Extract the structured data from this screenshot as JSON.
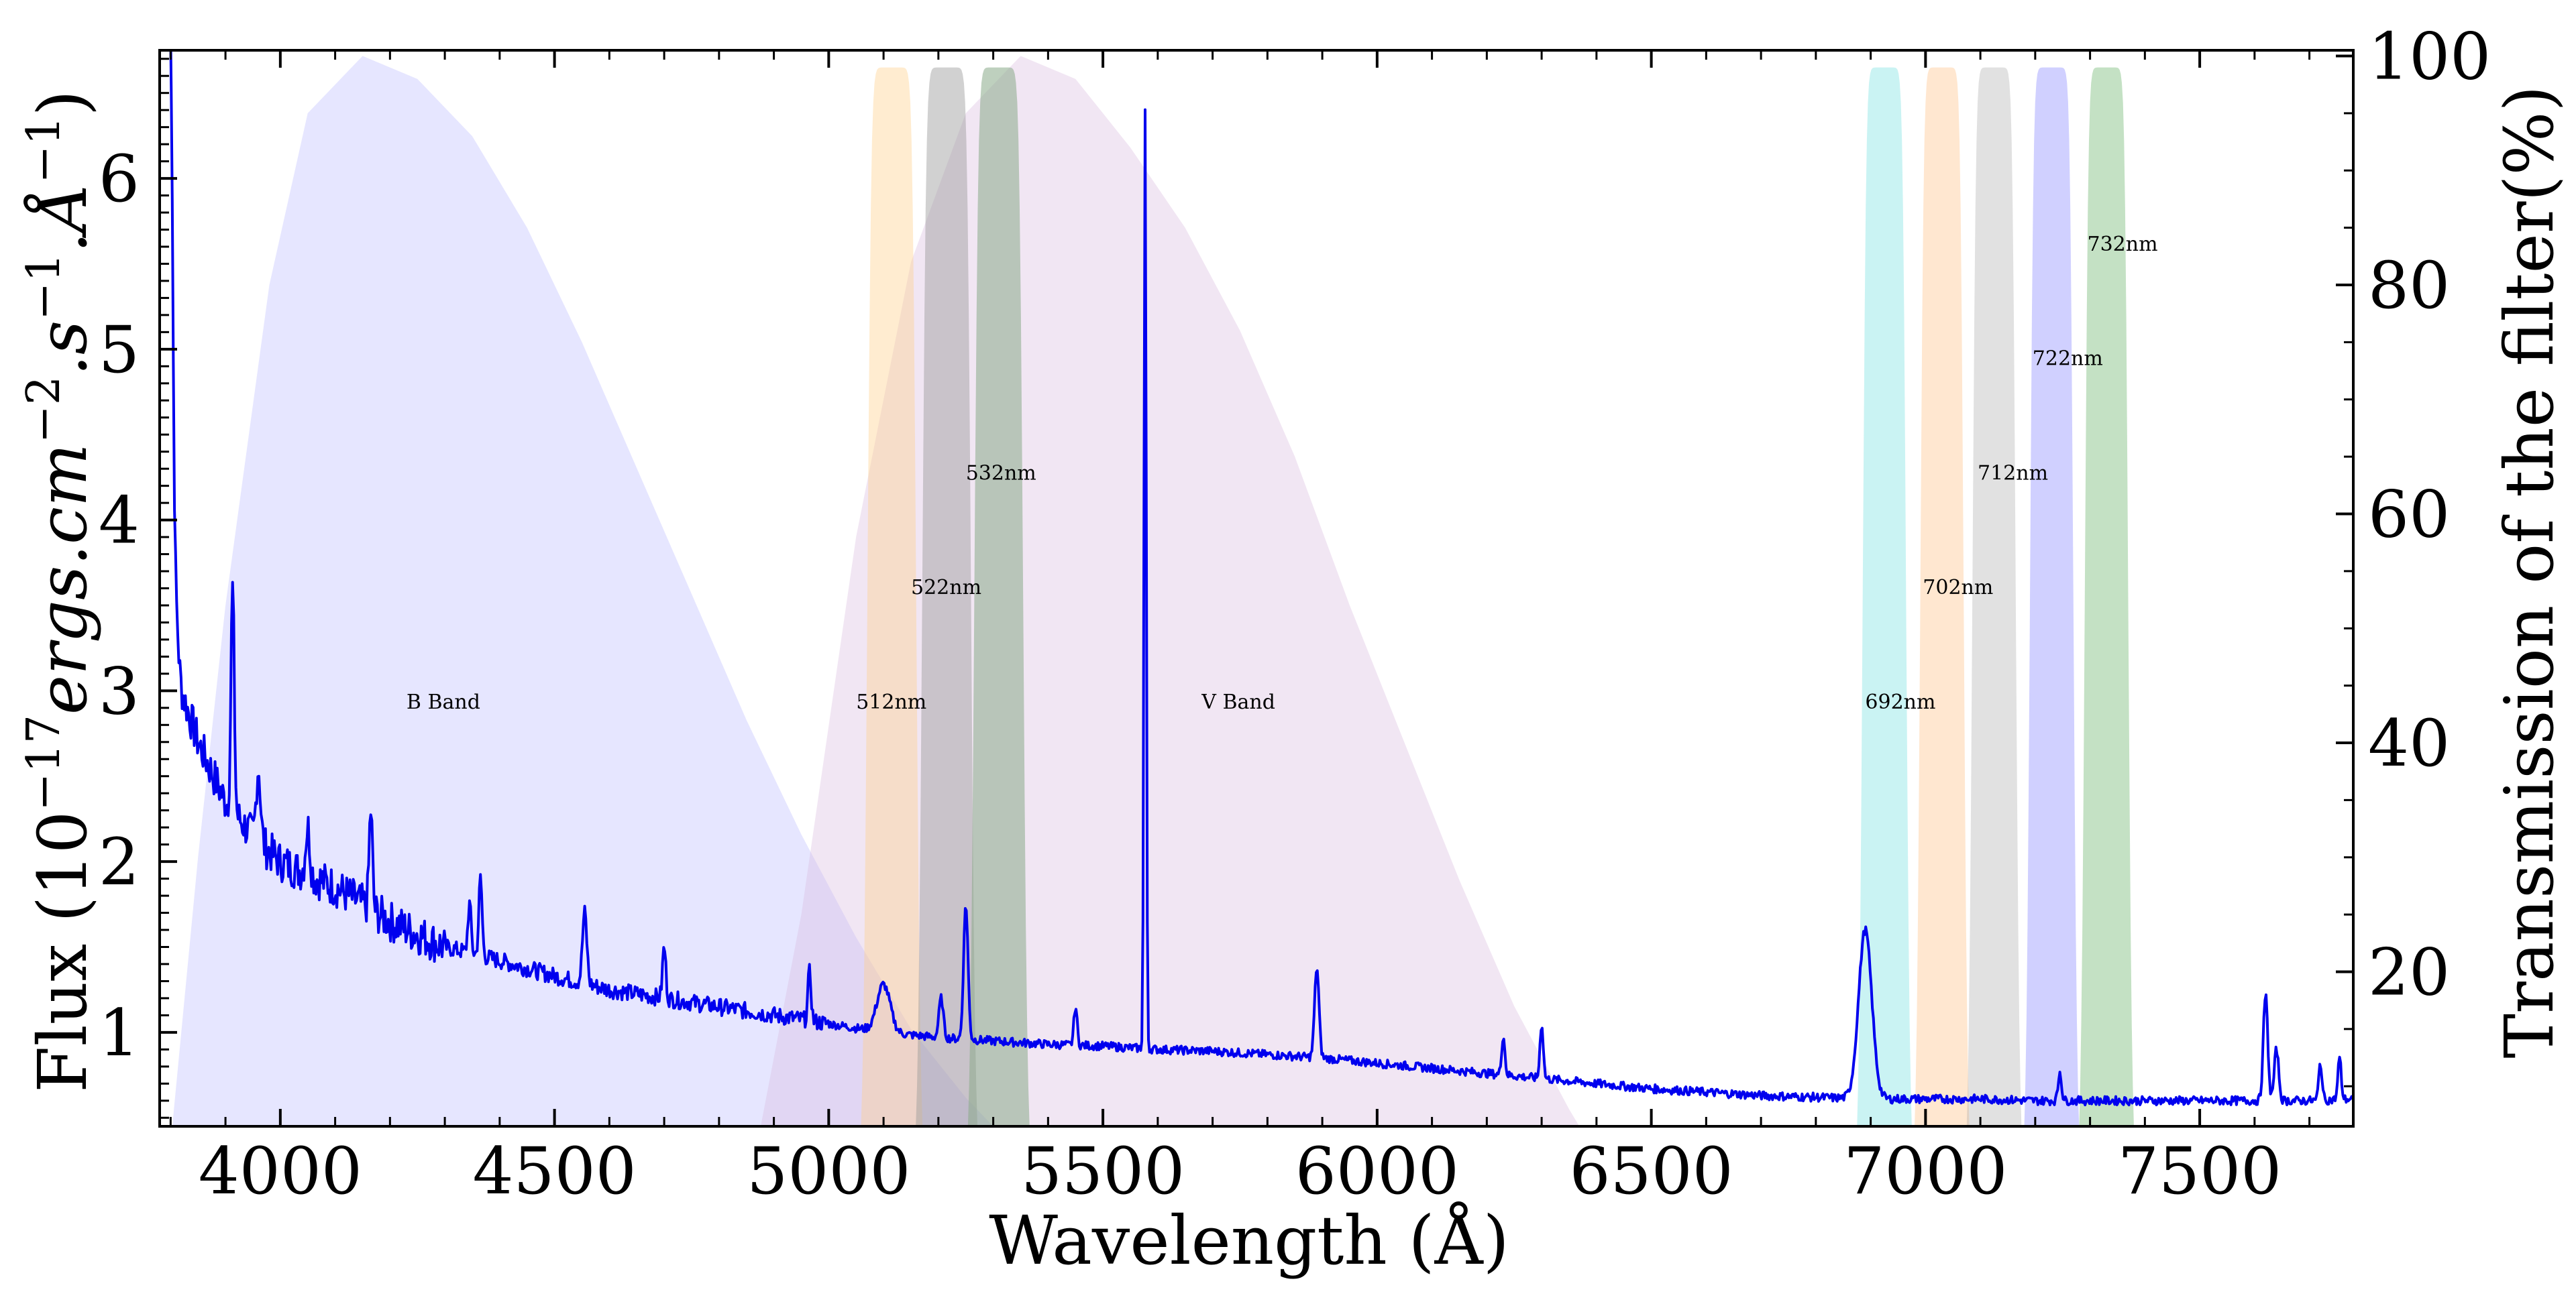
{
  "chart_data": {
    "type": "line",
    "title": "",
    "xlabel": "Wavelength (Å)",
    "ylabel_left_prefix": "Flux (10",
    "ylabel_left_exp": "−17",
    "ylabel_left_units": "ergs.cm",
    "ylabel_left_exp2": "−2",
    "ylabel_left_s": ".s",
    "ylabel_left_exp3": "−1",
    "ylabel_left_A": ".Å",
    "ylabel_left_exp4": "−1",
    "ylabel_left_close": ")",
    "ylabel_right": "Transmission of the filter(%)",
    "xlim": [
      3780,
      7780
    ],
    "ylim_left": [
      0.45,
      6.75
    ],
    "ylim_right": [
      6.5,
      100.5
    ],
    "xticks": [
      4000,
      4500,
      5000,
      5500,
      6000,
      6500,
      7000,
      7500
    ],
    "xtick_labels": [
      "4000",
      "4500",
      "5000",
      "5500",
      "6000",
      "6500",
      "7000",
      "7500"
    ],
    "yticks_left": [
      1,
      2,
      3,
      4,
      5,
      6
    ],
    "ytick_labels_left": [
      "1",
      "2",
      "3",
      "4",
      "5",
      "6"
    ],
    "yticks_right": [
      20,
      40,
      60,
      80,
      100
    ],
    "ytick_labels_right": [
      "20",
      "40",
      "60",
      "80",
      "100"
    ],
    "spectrum": {
      "name": "Flux",
      "color": "#0000ee",
      "continuum": {
        "x": [
          3795,
          3800,
          3820,
          3850,
          3900,
          3950,
          4000,
          4100,
          4200,
          4300,
          4400,
          4500,
          4600,
          4700,
          4800,
          4900,
          5000,
          5100,
          5200,
          5300,
          5400,
          5500,
          5600,
          5700,
          5800,
          5900,
          6000,
          6100,
          6200,
          6300,
          6400,
          6500,
          6600,
          6700,
          6800,
          6900,
          7000,
          7100,
          7200,
          7300,
          7400,
          7500,
          7600,
          7700,
          7780
        ],
        "y": [
          6.4,
          3.3,
          3.0,
          2.7,
          2.35,
          2.15,
          2.0,
          1.85,
          1.65,
          1.5,
          1.42,
          1.33,
          1.25,
          1.2,
          1.15,
          1.1,
          1.05,
          1.0,
          0.97,
          0.95,
          0.93,
          0.92,
          0.9,
          0.89,
          0.87,
          0.85,
          0.82,
          0.79,
          0.76,
          0.73,
          0.7,
          0.67,
          0.65,
          0.63,
          0.62,
          0.61,
          0.61,
          0.61,
          0.6,
          0.6,
          0.6,
          0.6,
          0.6,
          0.6,
          0.61
        ]
      },
      "emission_lines": [
        {
          "x": 3800,
          "peak": 6.7,
          "width": 4
        },
        {
          "x": 3810,
          "peak": 3.45,
          "width": 4
        },
        {
          "x": 3913,
          "peak": 3.6,
          "width": 3
        },
        {
          "x": 3960,
          "peak": 2.55,
          "width": 4
        },
        {
          "x": 4050,
          "peak": 2.2,
          "width": 4
        },
        {
          "x": 4165,
          "peak": 2.3,
          "width": 3
        },
        {
          "x": 4345,
          "peak": 1.75,
          "width": 3
        },
        {
          "x": 4365,
          "peak": 1.9,
          "width": 3
        },
        {
          "x": 4555,
          "peak": 1.7,
          "width": 4
        },
        {
          "x": 4700,
          "peak": 1.5,
          "width": 3
        },
        {
          "x": 4965,
          "peak": 1.35,
          "width": 3
        },
        {
          "x": 5100,
          "peak": 1.28,
          "width": 12
        },
        {
          "x": 5205,
          "peak": 1.2,
          "width": 4
        },
        {
          "x": 5250,
          "peak": 1.75,
          "width": 4
        },
        {
          "x": 5450,
          "peak": 1.15,
          "width": 3
        },
        {
          "x": 5577,
          "peak": 6.4,
          "width": 2
        },
        {
          "x": 5890,
          "peak": 1.38,
          "width": 4
        },
        {
          "x": 6230,
          "peak": 0.98,
          "width": 3
        },
        {
          "x": 6300,
          "peak": 1.05,
          "width": 3
        },
        {
          "x": 6890,
          "peak": 1.6,
          "width": 12
        },
        {
          "x": 7245,
          "peak": 0.77,
          "width": 3
        },
        {
          "x": 7620,
          "peak": 1.22,
          "width": 4
        },
        {
          "x": 7640,
          "peak": 0.9,
          "width": 4
        },
        {
          "x": 7720,
          "peak": 0.82,
          "width": 3
        },
        {
          "x": 7755,
          "peak": 0.85,
          "width": 3
        }
      ]
    },
    "filters": [
      {
        "name": "B Band",
        "label": "B Band",
        "color": "#8080ff",
        "opacity": 0.2,
        "x": [
          3790,
          3850,
          3900,
          3980,
          4050,
          4150,
          4250,
          4350,
          4450,
          4550,
          4650,
          4750,
          4850,
          4950,
          5050,
          5150,
          5250,
          5350,
          5460
        ],
        "t": [
          0,
          30,
          52,
          80,
          95,
          100,
          98,
          93,
          85,
          75,
          64,
          53,
          42,
          32,
          23,
          15,
          9,
          4,
          0
        ],
        "label_x": 4230,
        "label_t": 43
      },
      {
        "name": "V Band",
        "label": "V Band",
        "color": "#d8b8dd",
        "opacity": 0.35,
        "x": [
          4850,
          4950,
          5050,
          5150,
          5250,
          5350,
          5450,
          5550,
          5650,
          5750,
          5850,
          5950,
          6050,
          6150,
          6250,
          6350,
          6450
        ],
        "t": [
          0,
          25,
          58,
          82,
          95,
          100,
          98,
          92,
          85,
          76,
          65,
          52,
          40,
          28,
          17,
          8,
          0
        ],
        "label_x": 5680,
        "label_t": 43
      },
      {
        "name": "512nm",
        "label": "512nm",
        "color": "#ffd08a",
        "opacity": 0.4,
        "center": 5115,
        "fwhm": 90,
        "label_x": 5050,
        "label_t": 43
      },
      {
        "name": "522nm",
        "label": "522nm",
        "color": "#999999",
        "opacity": 0.45,
        "center": 5215,
        "fwhm": 90,
        "label_x": 5150,
        "label_t": 53
      },
      {
        "name": "532nm",
        "label": "532nm",
        "color": "#88aa88",
        "opacity": 0.55,
        "center": 5310,
        "fwhm": 90,
        "label_x": 5250,
        "label_t": 63
      },
      {
        "name": "692nm",
        "label": "692nm",
        "color": "#66dddd",
        "opacity": 0.35,
        "center": 6925,
        "fwhm": 80,
        "label_x": 6890,
        "label_t": 43
      },
      {
        "name": "702nm",
        "label": "702nm",
        "color": "#ffbb77",
        "opacity": 0.35,
        "center": 7030,
        "fwhm": 80,
        "label_x": 6995,
        "label_t": 53
      },
      {
        "name": "712nm",
        "label": "712nm",
        "color": "#aaaaaa",
        "opacity": 0.35,
        "center": 7125,
        "fwhm": 80,
        "label_x": 7095,
        "label_t": 63
      },
      {
        "name": "722nm",
        "label": "722nm",
        "color": "#7777ff",
        "opacity": 0.35,
        "center": 7230,
        "fwhm": 80,
        "label_x": 7195,
        "label_t": 73
      },
      {
        "name": "732nm",
        "label": "732nm",
        "color": "#55aa55",
        "opacity": 0.35,
        "center": 7330,
        "fwhm": 80,
        "label_x": 7295,
        "label_t": 83
      }
    ]
  }
}
